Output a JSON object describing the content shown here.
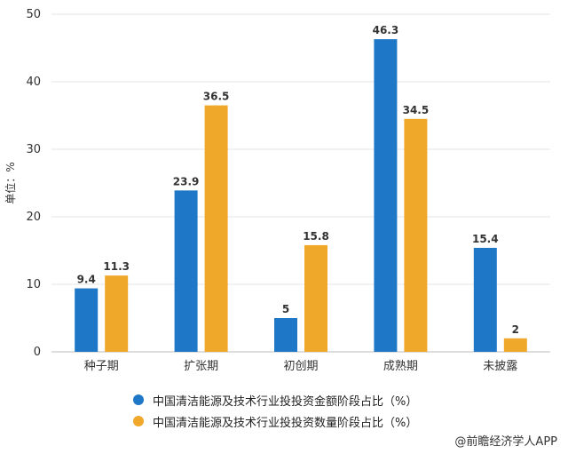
{
  "chart_data": {
    "type": "bar",
    "ylabel": "单位：%",
    "ylim": [
      0,
      50
    ],
    "yticks": [
      0,
      10,
      20,
      30,
      40,
      50
    ],
    "grid": true,
    "legend_position": "bottom",
    "categories": [
      "种子期",
      "扩张期",
      "初创期",
      "成熟期",
      "未披露"
    ],
    "series": [
      {
        "name": "中国清洁能源及技术行业投投资金额阶段占比（%）",
        "color": "#1f77c8",
        "values": [
          9.4,
          23.9,
          5,
          46.3,
          15.4
        ]
      },
      {
        "name": "中国清洁能源及技术行业投投资数量阶段占比（%）",
        "color": "#f0a82a",
        "values": [
          11.3,
          36.5,
          15.8,
          34.5,
          2
        ]
      }
    ]
  },
  "source": "@前瞻经济学人APP"
}
